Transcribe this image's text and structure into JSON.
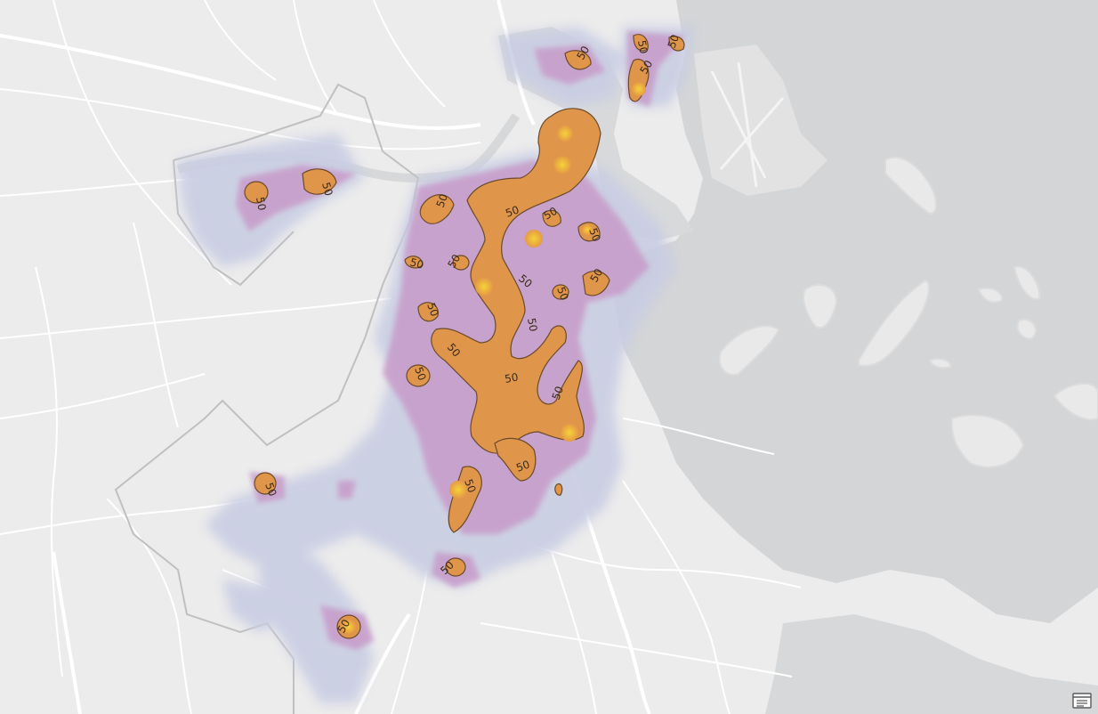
{
  "map": {
    "contour_label": "50",
    "colors": {
      "land": "#ececec",
      "water": "#d4d6d8",
      "roads": "#ffffff",
      "boundary": "#bdbdbd",
      "density_low": "#c9cde3",
      "density_mid": "#c49ac6",
      "density_high": "#e0944c",
      "density_peak": "#f2c13a",
      "contour_line": "#6b4a2a"
    }
  },
  "controls": {
    "legend_icon": "legend-icon"
  }
}
